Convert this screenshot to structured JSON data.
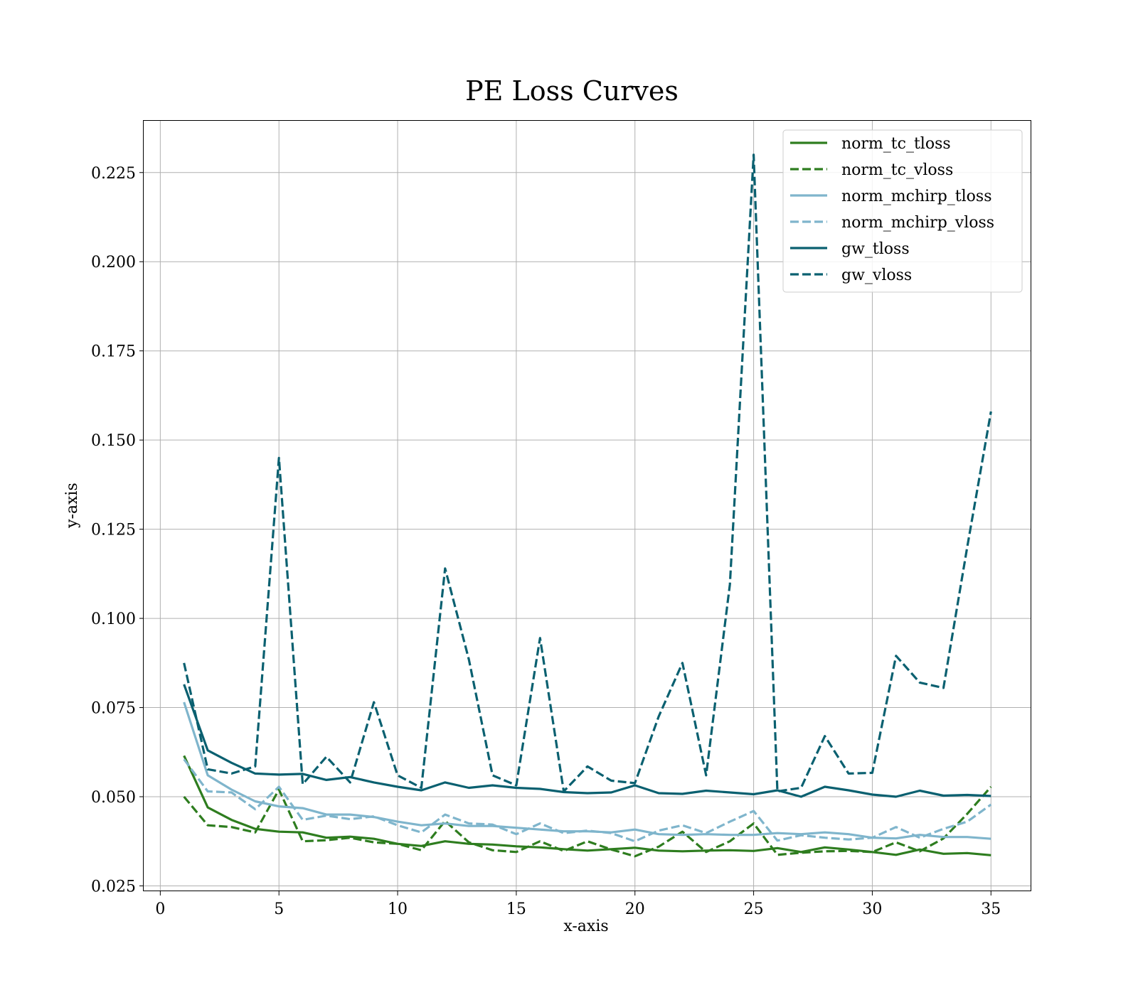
{
  "chart_data": {
    "type": "line",
    "title": "PE Loss Curves",
    "xlabel": "x-axis",
    "ylabel": "y-axis",
    "xlim": [
      -0.7,
      36.7
    ],
    "ylim": [
      0.0235,
      0.2395
    ],
    "xticks": [
      0,
      5,
      10,
      15,
      20,
      25,
      30,
      35
    ],
    "xtick_labels": [
      "0",
      "5",
      "10",
      "15",
      "20",
      "25",
      "30",
      "35"
    ],
    "yticks": [
      0.025,
      0.05,
      0.075,
      0.1,
      0.125,
      0.15,
      0.175,
      0.2,
      0.225
    ],
    "ytick_labels": [
      "0.025",
      "0.050",
      "0.075",
      "0.100",
      "0.125",
      "0.150",
      "0.175",
      "0.200",
      "0.225"
    ],
    "grid": true,
    "legend_position": "top-right",
    "x": [
      1,
      2,
      3,
      4,
      5,
      6,
      7,
      8,
      9,
      10,
      11,
      12,
      13,
      14,
      15,
      16,
      17,
      18,
      19,
      20,
      21,
      22,
      23,
      24,
      25,
      26,
      27,
      28,
      29,
      30,
      31,
      32,
      33,
      34,
      35
    ],
    "series": [
      {
        "name": "norm_tc_tloss",
        "color": "#2e7d1f",
        "style": "solid",
        "values": [
          0.0615,
          0.047,
          0.0435,
          0.041,
          0.0402,
          0.04,
          0.0385,
          0.0388,
          0.0382,
          0.0368,
          0.0362,
          0.0375,
          0.0368,
          0.0366,
          0.0361,
          0.0358,
          0.0353,
          0.0349,
          0.0353,
          0.0357,
          0.0349,
          0.0347,
          0.0349,
          0.035,
          0.0348,
          0.0356,
          0.0345,
          0.0358,
          0.0352,
          0.0345,
          0.0337,
          0.0352,
          0.034,
          0.0342,
          0.0336
        ]
      },
      {
        "name": "norm_tc_vloss",
        "color": "#2e7d1f",
        "style": "dashed",
        "values": [
          0.05,
          0.042,
          0.0415,
          0.04,
          0.052,
          0.0375,
          0.0378,
          0.0385,
          0.0372,
          0.0368,
          0.035,
          0.0432,
          0.0372,
          0.035,
          0.0345,
          0.0375,
          0.0348,
          0.0375,
          0.0352,
          0.0333,
          0.036,
          0.0402,
          0.0345,
          0.0375,
          0.0425,
          0.0337,
          0.0343,
          0.0347,
          0.0348,
          0.0345,
          0.0372,
          0.0347,
          0.0383,
          0.0452,
          0.0528
        ]
      },
      {
        "name": "norm_mchirp_tloss",
        "color": "#7fb5cc",
        "style": "solid",
        "values": [
          0.0765,
          0.056,
          0.052,
          0.0487,
          0.0473,
          0.0468,
          0.045,
          0.045,
          0.0443,
          0.043,
          0.042,
          0.0425,
          0.0418,
          0.0418,
          0.0413,
          0.0408,
          0.0403,
          0.0403,
          0.04,
          0.0408,
          0.0395,
          0.0393,
          0.0395,
          0.0393,
          0.0393,
          0.0398,
          0.0395,
          0.04,
          0.0395,
          0.0385,
          0.0383,
          0.0393,
          0.0387,
          0.0387,
          0.0382
        ]
      },
      {
        "name": "norm_mchirp_vloss",
        "color": "#7fb5cc",
        "style": "dashed",
        "values": [
          0.0605,
          0.0515,
          0.0512,
          0.0465,
          0.0528,
          0.0435,
          0.0447,
          0.0437,
          0.0445,
          0.042,
          0.04,
          0.045,
          0.0425,
          0.0422,
          0.0395,
          0.0425,
          0.0398,
          0.0405,
          0.0398,
          0.0375,
          0.0405,
          0.042,
          0.0398,
          0.043,
          0.046,
          0.0377,
          0.0392,
          0.0385,
          0.038,
          0.0385,
          0.0415,
          0.0385,
          0.041,
          0.043,
          0.0478
        ]
      },
      {
        "name": "gw_tloss",
        "color": "#0a6070",
        "style": "solid",
        "values": [
          0.0815,
          0.063,
          0.0595,
          0.0565,
          0.0562,
          0.0564,
          0.0547,
          0.0555,
          0.054,
          0.0528,
          0.0518,
          0.054,
          0.0525,
          0.0532,
          0.0525,
          0.0522,
          0.0513,
          0.051,
          0.0512,
          0.0532,
          0.051,
          0.0508,
          0.0517,
          0.0512,
          0.0507,
          0.0518,
          0.05,
          0.0528,
          0.0518,
          0.0506,
          0.05,
          0.0517,
          0.0503,
          0.0505,
          0.0502
        ]
      },
      {
        "name": "gw_vloss",
        "color": "#0a6070",
        "style": "dashed",
        "values": [
          0.0875,
          0.0577,
          0.0565,
          0.0585,
          0.145,
          0.0535,
          0.0612,
          0.054,
          0.0765,
          0.056,
          0.0525,
          0.114,
          0.0885,
          0.056,
          0.0532,
          0.0945,
          0.0515,
          0.0585,
          0.0545,
          0.0538,
          0.0725,
          0.0875,
          0.056,
          0.1095,
          0.23,
          0.0515,
          0.0525,
          0.067,
          0.0565,
          0.0567,
          0.0895,
          0.082,
          0.0805,
          0.12,
          0.158
        ]
      }
    ]
  }
}
